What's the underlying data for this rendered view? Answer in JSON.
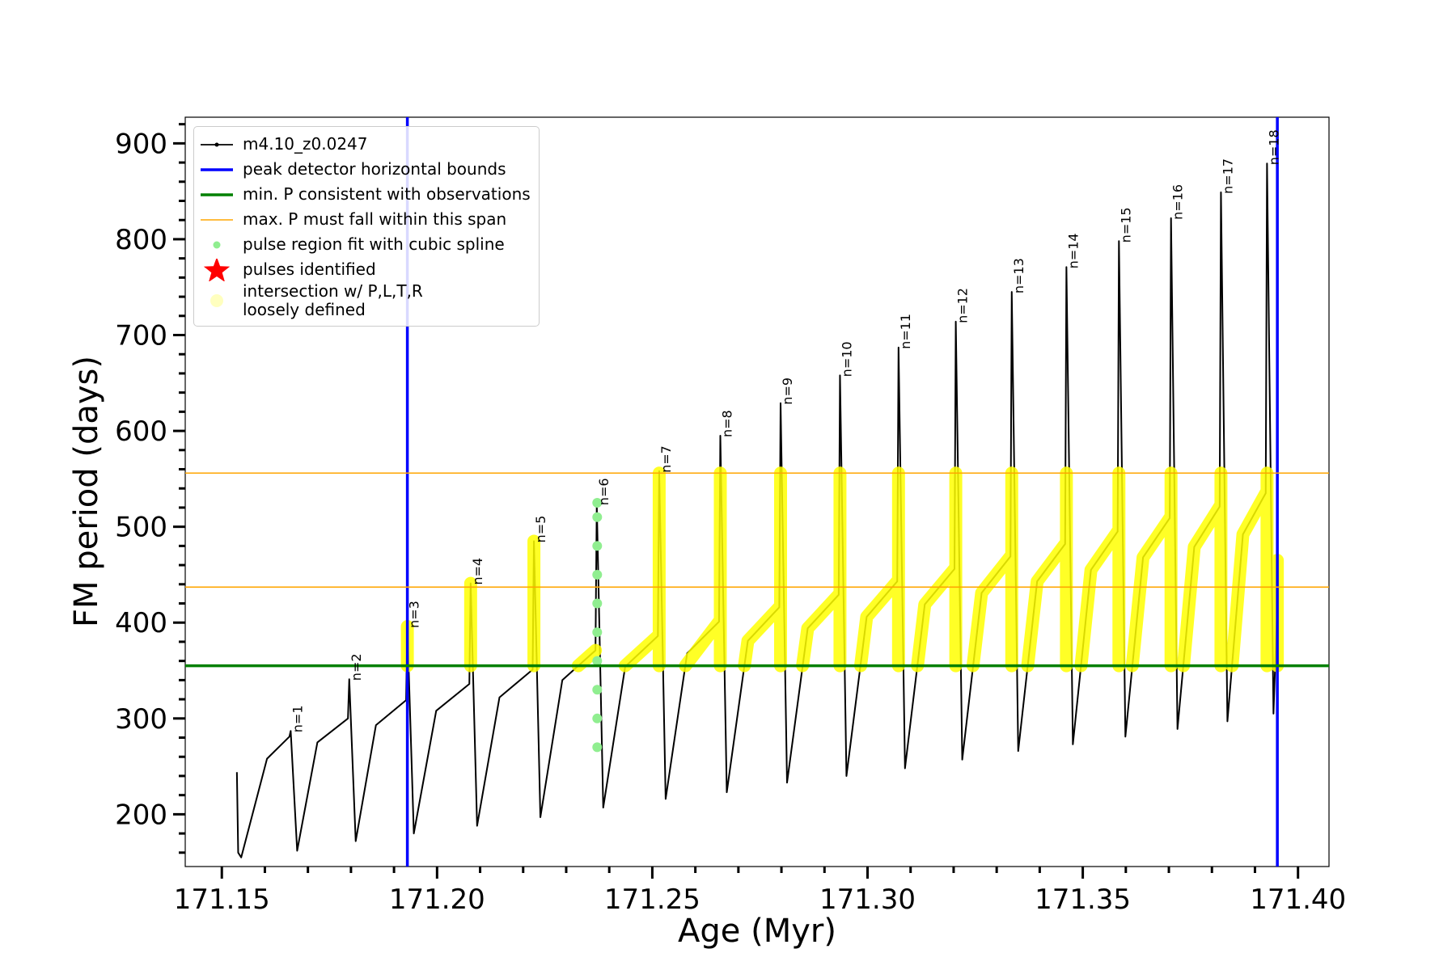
{
  "chart_data": {
    "type": "line",
    "xlabel": "Age (Myr)",
    "ylabel": "FM period (days)",
    "xlim": [
      171.1415,
      171.4072
    ],
    "ylim": [
      145.5,
      927.3
    ],
    "xticks": [
      171.15,
      {
        "value": 171.2,
        "label": "171.20"
      },
      171.25,
      {
        "value": 171.3,
        "label": "171.30"
      },
      171.35,
      {
        "value": 171.4,
        "label": "171.40"
      }
    ],
    "xminorticks": [
      171.16,
      171.17,
      171.18,
      171.19,
      171.21,
      171.22,
      171.23,
      171.24,
      171.26,
      171.27,
      171.28,
      171.29,
      171.31,
      171.32,
      171.33,
      171.34,
      171.36,
      171.37,
      171.38,
      171.39
    ],
    "yticks": [
      200,
      300,
      400,
      500,
      600,
      700,
      800,
      900
    ],
    "yminorticks": [
      160,
      180,
      220,
      240,
      260,
      280,
      320,
      340,
      360,
      380,
      420,
      440,
      460,
      480,
      520,
      540,
      560,
      580,
      620,
      640,
      660,
      680,
      720,
      740,
      760,
      780,
      820,
      840,
      860,
      880,
      920
    ],
    "legend": "upper left",
    "series": [
      {
        "name": "m4.10_z0.0247",
        "kind": "line",
        "color": "#000000",
        "x": [
          171.1535,
          171.1538,
          171.1545,
          171.1605,
          171.1657,
          171.166,
          171.1675,
          171.1722,
          171.1793,
          171.1796,
          171.1811,
          171.1858,
          171.1928,
          171.1931,
          171.1946,
          171.1998,
          171.2075,
          171.2078,
          171.2093,
          171.2145,
          171.2222,
          171.2225,
          171.224,
          171.2291,
          171.2368,
          171.2371,
          171.2386,
          171.2437,
          171.2513,
          171.2516,
          171.2531,
          171.2581,
          171.2655,
          171.2658,
          171.2673,
          171.2722,
          171.2795,
          171.2798,
          171.2813,
          171.2861,
          171.2933,
          171.2936,
          171.2951,
          171.2998,
          171.3069,
          171.3072,
          171.3087,
          171.3133,
          171.3202,
          171.3205,
          171.322,
          171.3265,
          171.3332,
          171.3335,
          171.335,
          171.3394,
          171.3459,
          171.3462,
          171.3477,
          171.3519,
          171.3581,
          171.3584,
          171.3599,
          171.364,
          171.3702,
          171.3705,
          171.372,
          171.3759,
          171.3818,
          171.3821,
          171.3836,
          171.3872,
          171.3925,
          171.3928,
          171.3943,
          171.3952
        ],
        "y": [
          244,
          160,
          155,
          258,
          281,
          287,
          162,
          275,
          300,
          341,
          172,
          293,
          319,
          396,
          180,
          308,
          336,
          441,
          188,
          322,
          351,
          485,
          197,
          340,
          371,
          524,
          207,
          354,
          386,
          558,
          216,
          368,
          401,
          595,
          223,
          381,
          416,
          629,
          233,
          394,
          429,
          658,
          240,
          406,
          443,
          687,
          248,
          419,
          456,
          714,
          257,
          431,
          469,
          745,
          266,
          443,
          482,
          771,
          273,
          455,
          495,
          798,
          281,
          468,
          509,
          822,
          289,
          479,
          521,
          849,
          297,
          492,
          535,
          879,
          305,
          420
        ]
      },
      {
        "name": "peak detector horizontal bounds",
        "kind": "vline",
        "color": "#0000ff",
        "x": [
          171.1931,
          171.3952
        ]
      },
      {
        "name": "min. P consistent with observations",
        "kind": "hline",
        "color": "#008000",
        "y": [
          355
        ]
      },
      {
        "name": "max. P must fall within this span",
        "kind": "hline",
        "color": "#ffa500",
        "y": [
          437,
          556
        ]
      },
      {
        "name": "pulse region fit with cubic spline",
        "kind": "scatter",
        "color": "#90ee90",
        "x": [
          171.2372,
          171.2372,
          171.2372,
          171.2372,
          171.2372,
          171.2372,
          171.2372,
          171.2372,
          171.2372,
          171.2372
        ],
        "y": [
          270,
          300,
          330,
          360,
          390,
          420,
          450,
          480,
          510,
          525
        ]
      },
      {
        "name": "pulses identified",
        "kind": "star",
        "color": "#ff0000",
        "x": [],
        "y": []
      },
      {
        "name": "intersection w/ P,L,T,R\nloosely defined",
        "kind": "band",
        "color": "#ffff00",
        "x": [
          171.1931,
          171.1931,
          null,
          171.2078,
          171.2078,
          null,
          171.2225,
          171.2225,
          null,
          171.2328,
          171.2368,
          null,
          171.2437,
          171.2513,
          null,
          171.2516,
          171.2516,
          null,
          171.2577,
          171.2655,
          null,
          171.2658,
          171.2658,
          null,
          171.2714,
          171.2722,
          171.2795,
          null,
          171.2798,
          171.2798,
          null,
          171.2849,
          171.2861,
          171.2933,
          null,
          171.2936,
          171.2936,
          null,
          171.2984,
          171.2998,
          171.3069,
          null,
          171.3072,
          171.3072,
          null,
          171.3116,
          171.3133,
          171.3202,
          null,
          171.3205,
          171.3205,
          null,
          171.3245,
          171.3265,
          171.3332,
          null,
          171.3335,
          171.3335,
          null,
          171.3372,
          171.3394,
          171.3459,
          null,
          171.3462,
          171.3462,
          null,
          171.3496,
          171.3519,
          171.3581,
          null,
          171.3584,
          171.3584,
          null,
          171.3615,
          171.364,
          171.3702,
          null,
          171.3705,
          171.3705,
          null,
          171.3734,
          171.3759,
          171.3818,
          null,
          171.3821,
          171.3821,
          null,
          171.3847,
          171.3872,
          171.3925,
          null,
          171.3928,
          171.3928,
          null,
          171.3952,
          171.3952
        ],
        "y": [
          355,
          396,
          null,
          355,
          441,
          null,
          355,
          485,
          null,
          355,
          371,
          null,
          355,
          386,
          null,
          355,
          556,
          null,
          355,
          401,
          null,
          355,
          556,
          null,
          355,
          381,
          416,
          null,
          355,
          556,
          null,
          355,
          394,
          429,
          null,
          355,
          556,
          null,
          355,
          406,
          443,
          null,
          355,
          556,
          null,
          355,
          419,
          456,
          null,
          355,
          556,
          null,
          355,
          431,
          469,
          null,
          355,
          556,
          null,
          355,
          443,
          482,
          null,
          355,
          556,
          null,
          355,
          455,
          495,
          null,
          355,
          556,
          null,
          355,
          468,
          509,
          null,
          355,
          556,
          null,
          355,
          479,
          521,
          null,
          355,
          556,
          null,
          355,
          492,
          535,
          null,
          355,
          556,
          null,
          355,
          465
        ]
      }
    ],
    "annotations": [
      {
        "text": "n=1",
        "x": 171.166,
        "y": 287
      },
      {
        "text": "n=2",
        "x": 171.1796,
        "y": 341
      },
      {
        "text": "n=3",
        "x": 171.1931,
        "y": 396
      },
      {
        "text": "n=4",
        "x": 171.2078,
        "y": 441
      },
      {
        "text": "n=5",
        "x": 171.2225,
        "y": 485
      },
      {
        "text": "n=6",
        "x": 171.2371,
        "y": 524
      },
      {
        "text": "n=7",
        "x": 171.2516,
        "y": 558
      },
      {
        "text": "n=8",
        "x": 171.2658,
        "y": 595
      },
      {
        "text": "n=9",
        "x": 171.2798,
        "y": 629
      },
      {
        "text": "n=10",
        "x": 171.2936,
        "y": 658
      },
      {
        "text": "n=11",
        "x": 171.3072,
        "y": 687
      },
      {
        "text": "n=12",
        "x": 171.3205,
        "y": 714
      },
      {
        "text": "n=13",
        "x": 171.3335,
        "y": 745
      },
      {
        "text": "n=14",
        "x": 171.3462,
        "y": 771
      },
      {
        "text": "n=15",
        "x": 171.3584,
        "y": 798
      },
      {
        "text": "n=16",
        "x": 171.3705,
        "y": 822
      },
      {
        "text": "n=17",
        "x": 171.3821,
        "y": 849
      },
      {
        "text": "n=18",
        "x": 171.3928,
        "y": 879
      }
    ]
  }
}
